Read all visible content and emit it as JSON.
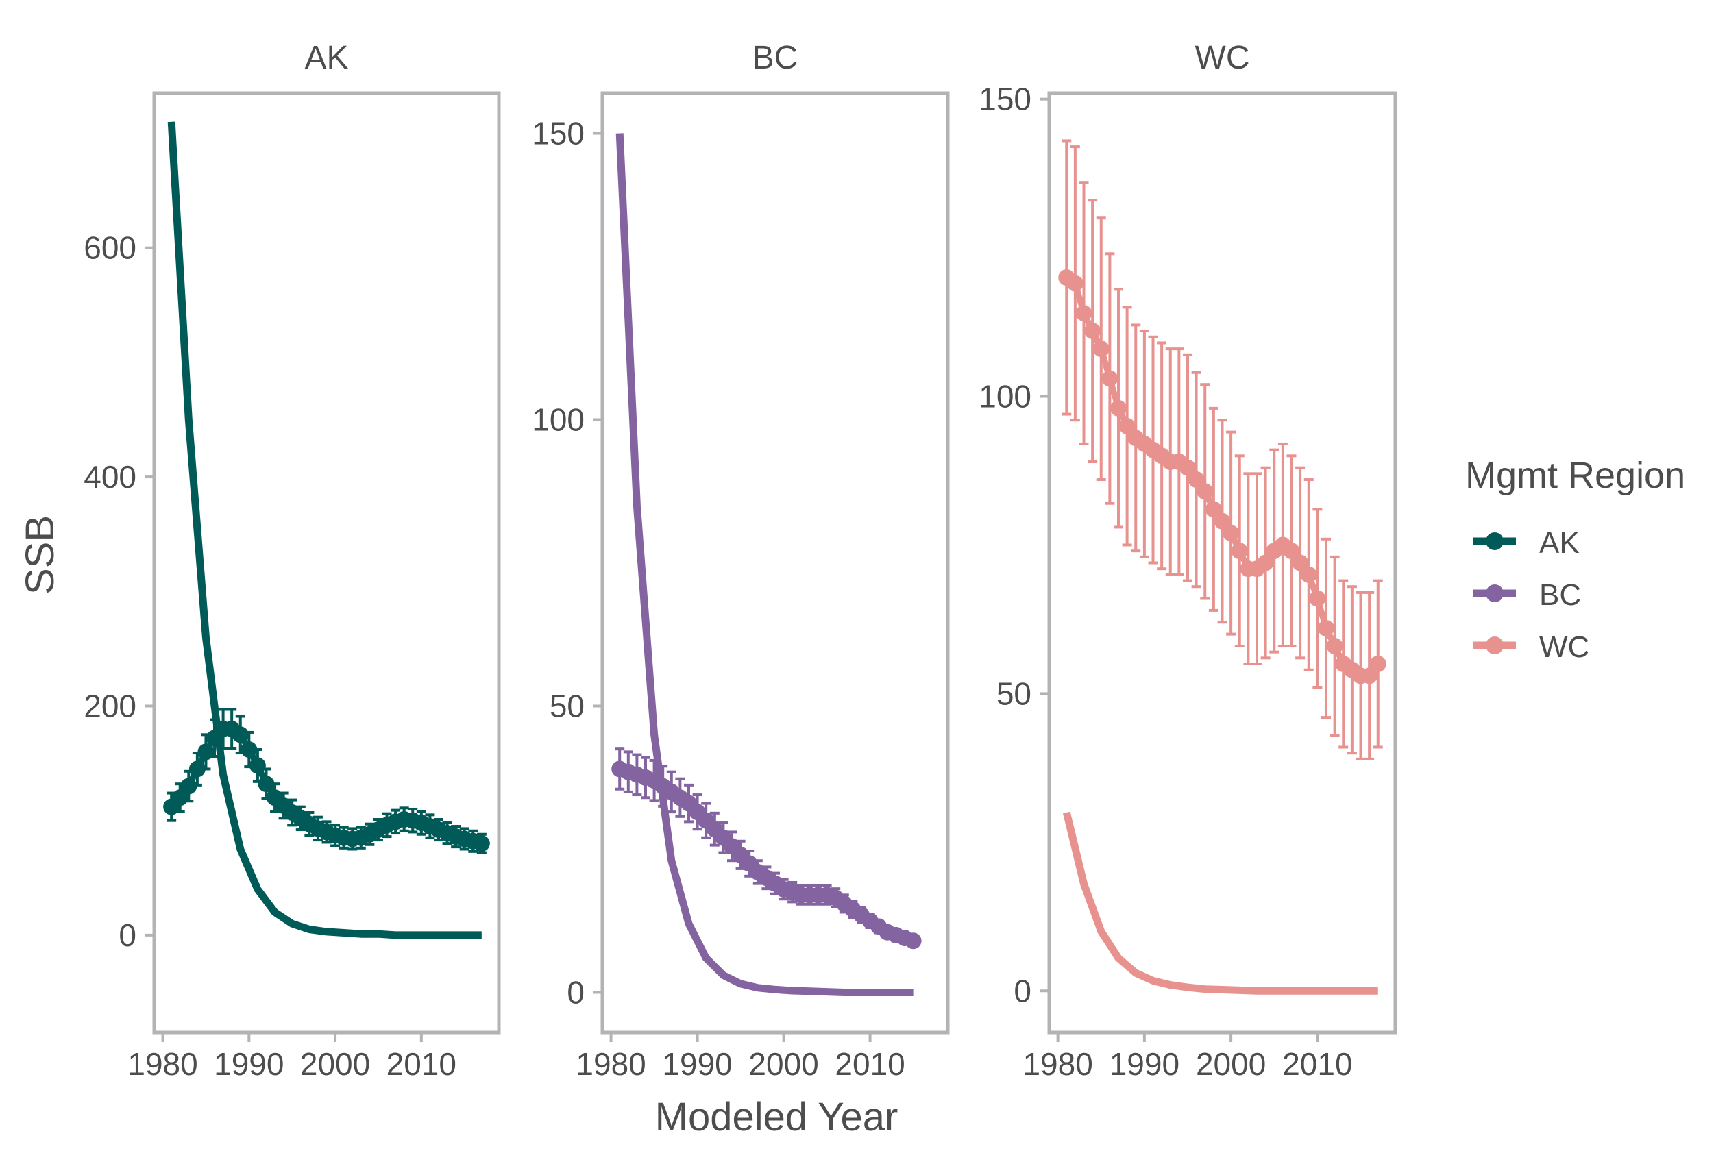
{
  "chart_data": {
    "type": "line",
    "xlabel": "Modeled Year",
    "ylabel": "SSB",
    "xlim": [
      1979,
      2019
    ],
    "xticks": [
      "1980",
      "1990",
      "2000",
      "2010"
    ],
    "legend": {
      "title": "Mgmt Region",
      "placement": "right",
      "entries": [
        {
          "label": "AK",
          "color": "#005a57"
        },
        {
          "label": "BC",
          "color": "#8464a0"
        },
        {
          "label": "WC",
          "color": "#e8928f"
        }
      ]
    },
    "panels": [
      {
        "title": "AK",
        "color": "#005a57",
        "ylim": [
          -85,
          735
        ],
        "yticks": [
          "0",
          "200",
          "400",
          "600"
        ],
        "yticks_values": [
          0,
          200,
          400,
          600
        ],
        "decay_line": {
          "x": [
            1981,
            1983,
            1985,
            1987,
            1989,
            1991,
            1993,
            1995,
            1997,
            1999,
            2001,
            2003,
            2005,
            2007,
            2009,
            2011,
            2013,
            2015,
            2017
          ],
          "y": [
            710,
            450,
            260,
            140,
            75,
            40,
            20,
            10,
            5,
            3,
            2,
            1,
            1,
            0,
            0,
            0,
            0,
            0,
            0
          ]
        },
        "ssb": {
          "x": [
            1981,
            1982,
            1983,
            1984,
            1985,
            1986,
            1987,
            1988,
            1989,
            1990,
            1991,
            1992,
            1993,
            1994,
            1995,
            1996,
            1997,
            1998,
            1999,
            2000,
            2001,
            2002,
            2003,
            2004,
            2005,
            2006,
            2007,
            2008,
            2009,
            2010,
            2011,
            2012,
            2013,
            2014,
            2015,
            2016,
            2017
          ],
          "y": [
            112,
            120,
            130,
            145,
            160,
            172,
            180,
            180,
            175,
            162,
            148,
            132,
            120,
            113,
            107,
            102,
            97,
            93,
            90,
            87,
            85,
            84,
            85,
            88,
            92,
            96,
            99,
            101,
            100,
            98,
            95,
            92,
            89,
            86,
            84,
            82,
            80
          ],
          "err": [
            12,
            12,
            13,
            14,
            15,
            16,
            17,
            17,
            16,
            15,
            14,
            13,
            12,
            11,
            11,
            10,
            10,
            10,
            9,
            9,
            9,
            9,
            9,
            9,
            9,
            10,
            10,
            10,
            10,
            10,
            10,
            9,
            9,
            9,
            9,
            9,
            8
          ]
        }
      },
      {
        "title": "BC",
        "color": "#8464a0",
        "ylim": [
          -7,
          157
        ],
        "yticks": [
          "0",
          "50",
          "100",
          "150"
        ],
        "yticks_values": [
          0,
          50,
          100,
          150
        ],
        "decay_line": {
          "x": [
            1981,
            1983,
            1985,
            1987,
            1989,
            1991,
            1993,
            1995,
            1997,
            1999,
            2001,
            2003,
            2005,
            2007,
            2009,
            2011,
            2013,
            2015
          ],
          "y": [
            150,
            85,
            45,
            23,
            12,
            6,
            3,
            1.5,
            0.8,
            0.5,
            0.3,
            0.2,
            0.1,
            0,
            0,
            0,
            0,
            0
          ]
        },
        "ssb": {
          "x": [
            1981,
            1982,
            1983,
            1984,
            1985,
            1986,
            1987,
            1988,
            1989,
            1990,
            1991,
            1992,
            1993,
            1994,
            1995,
            1996,
            1997,
            1998,
            1999,
            2000,
            2001,
            2002,
            2003,
            2004,
            2005,
            2006,
            2007,
            2008,
            2009,
            2010,
            2011,
            2012,
            2013,
            2014,
            2015
          ],
          "y": [
            39,
            38.5,
            38,
            37.5,
            37,
            36,
            35,
            34,
            33,
            31.5,
            30,
            28.5,
            27,
            25.5,
            24,
            22.5,
            21,
            20,
            19,
            18,
            17.5,
            17,
            17,
            17,
            17,
            16.5,
            15.5,
            14.5,
            13.5,
            12.5,
            11.5,
            10.5,
            10,
            9.5,
            9
          ],
          "err": [
            3.5,
            3.5,
            3.5,
            3.5,
            3.5,
            3.5,
            3.5,
            3.3,
            3.2,
            3,
            3,
            2.8,
            2.6,
            2.5,
            2.4,
            2.2,
            2,
            1.9,
            1.8,
            1.7,
            1.7,
            1.6,
            1.6,
            1.6,
            1.6,
            1.6,
            1.5,
            1.4,
            1.3,
            1.2,
            1.1,
            1,
            1,
            0.9,
            0.9
          ]
        }
      },
      {
        "title": "WC",
        "color": "#e8928f",
        "ylim": [
          -7,
          151
        ],
        "yticks": [
          "0",
          "50",
          "100",
          "150"
        ],
        "yticks_values": [
          0,
          50,
          100,
          150
        ],
        "decay_line": {
          "x": [
            1981,
            1983,
            1985,
            1987,
            1989,
            1991,
            1993,
            1995,
            1997,
            1999,
            2001,
            2003,
            2005,
            2007,
            2009,
            2011,
            2013,
            2015,
            2017
          ],
          "y": [
            30,
            18,
            10,
            5.5,
            3,
            1.7,
            1,
            0.6,
            0.3,
            0.2,
            0.1,
            0,
            0,
            0,
            0,
            0,
            0,
            0,
            0
          ]
        },
        "ssb": {
          "x": [
            1981,
            1982,
            1983,
            1984,
            1985,
            1986,
            1987,
            1988,
            1989,
            1990,
            1991,
            1992,
            1993,
            1994,
            1995,
            1996,
            1997,
            1998,
            1999,
            2000,
            2001,
            2002,
            2003,
            2004,
            2005,
            2006,
            2007,
            2008,
            2009,
            2010,
            2011,
            2012,
            2013,
            2014,
            2015,
            2016,
            2017
          ],
          "y": [
            120,
            119,
            114,
            111,
            108,
            103,
            98,
            95,
            93,
            92,
            91,
            90,
            89,
            89,
            88,
            86,
            84,
            81,
            79,
            77,
            74,
            71,
            71,
            72,
            74,
            75,
            74,
            72,
            70,
            66,
            61,
            58,
            55,
            54,
            53,
            53,
            55
          ],
          "err": [
            23,
            23,
            22,
            22,
            22,
            21,
            20,
            20,
            19,
            19,
            19,
            19,
            19,
            19,
            19,
            18,
            18,
            17,
            17,
            17,
            16,
            16,
            16,
            16,
            17,
            17,
            16,
            16,
            16,
            15,
            15,
            15,
            14,
            14,
            14,
            14,
            14
          ]
        }
      }
    ]
  }
}
